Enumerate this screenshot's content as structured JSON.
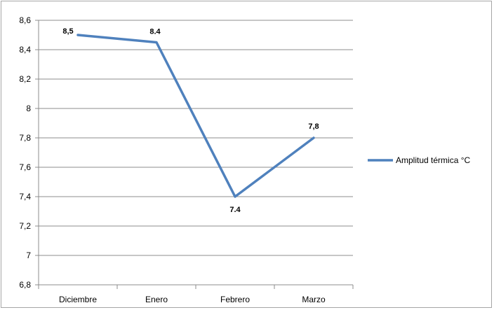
{
  "chart_data": {
    "type": "line",
    "categories": [
      "Diciembre",
      "Enero",
      "Febrero",
      "Marzo"
    ],
    "series": [
      {
        "name": "Amplitud térmica °C",
        "values": [
          8.5,
          8.45,
          7.4,
          7.8
        ],
        "data_labels": [
          "8,5",
          "8.4",
          "7.4",
          "7,8"
        ],
        "color": "#4f81bd"
      }
    ],
    "y_ticks": [
      {
        "value": 6.8,
        "label": "6,8"
      },
      {
        "value": 7.0,
        "label": "7"
      },
      {
        "value": 7.2,
        "label": "7,2"
      },
      {
        "value": 7.4,
        "label": "7,4"
      },
      {
        "value": 7.6,
        "label": "7,6"
      },
      {
        "value": 7.8,
        "label": "7,8"
      },
      {
        "value": 8.0,
        "label": "8"
      },
      {
        "value": 8.2,
        "label": "8,2"
      },
      {
        "value": 8.4,
        "label": "8,4"
      },
      {
        "value": 8.6,
        "label": "8,6"
      }
    ],
    "ylim": [
      6.8,
      8.6
    ],
    "title": "",
    "xlabel": "",
    "ylabel": "",
    "grid": true,
    "legend_position": "right"
  },
  "colors": {
    "series": "#4f81bd",
    "grid": "#8c8c8c",
    "axis": "#8c8c8c",
    "frame": "#a6a6a6"
  }
}
